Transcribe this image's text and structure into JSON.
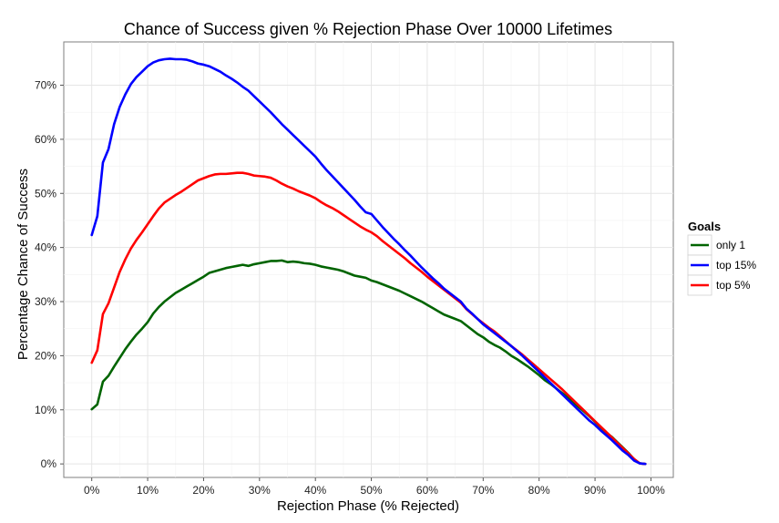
{
  "chart_data": {
    "type": "line",
    "title": "Chance of Success given % Rejection Phase Over 10000 Lifetimes",
    "xlabel": "Rejection Phase (% Rejected)",
    "ylabel": "Percentage Chance of Success",
    "xlim": [
      -5,
      104
    ],
    "ylim": [
      -2.5,
      78
    ],
    "x_ticks": [
      0,
      10,
      20,
      30,
      40,
      50,
      60,
      70,
      80,
      90,
      100
    ],
    "x_tick_labels": [
      "0%",
      "10%",
      "20%",
      "30%",
      "40%",
      "50%",
      "60%",
      "70%",
      "80%",
      "90%",
      "100%"
    ],
    "y_ticks": [
      0,
      10,
      20,
      30,
      40,
      50,
      60,
      70
    ],
    "y_tick_labels": [
      "0%",
      "10%",
      "20%",
      "30%",
      "40%",
      "50%",
      "60%",
      "70%"
    ],
    "grid": true,
    "legend_position": "right",
    "legend_title": "Goals",
    "series": [
      {
        "name": "only 1",
        "color": "#006400",
        "points": [
          [
            0,
            10.1
          ],
          [
            1,
            11
          ],
          [
            2,
            15.2
          ],
          [
            3,
            16.3
          ],
          [
            4,
            18
          ],
          [
            5,
            19.6
          ],
          [
            6,
            21.2
          ],
          [
            7,
            22.6
          ],
          [
            8,
            23.9
          ],
          [
            9,
            25
          ],
          [
            10,
            26.2
          ],
          [
            11,
            27.8
          ],
          [
            12,
            29
          ],
          [
            13,
            30
          ],
          [
            14,
            30.8
          ],
          [
            15,
            31.6
          ],
          [
            16,
            32.2
          ],
          [
            17,
            32.8
          ],
          [
            18,
            33.4
          ],
          [
            19,
            34
          ],
          [
            20,
            34.6
          ],
          [
            21,
            35.3
          ],
          [
            22,
            35.6
          ],
          [
            23,
            35.9
          ],
          [
            24,
            36.2
          ],
          [
            25,
            36.4
          ],
          [
            26,
            36.6
          ],
          [
            27,
            36.8
          ],
          [
            28,
            36.6
          ],
          [
            29,
            36.9
          ],
          [
            30,
            37.1
          ],
          [
            31,
            37.3
          ],
          [
            32,
            37.5
          ],
          [
            33,
            37.5
          ],
          [
            34,
            37.6
          ],
          [
            35,
            37.3
          ],
          [
            36,
            37.4
          ],
          [
            37,
            37.3
          ],
          [
            38,
            37.1
          ],
          [
            39,
            37
          ],
          [
            40,
            36.8
          ],
          [
            41,
            36.5
          ],
          [
            42,
            36.3
          ],
          [
            43,
            36.1
          ],
          [
            44,
            35.9
          ],
          [
            45,
            35.6
          ],
          [
            46,
            35.2
          ],
          [
            47,
            34.8
          ],
          [
            48,
            34.6
          ],
          [
            49,
            34.4
          ],
          [
            50,
            33.9
          ],
          [
            51,
            33.6
          ],
          [
            52,
            33.2
          ],
          [
            53,
            32.8
          ],
          [
            54,
            32.4
          ],
          [
            55,
            32
          ],
          [
            56,
            31.5
          ],
          [
            57,
            31
          ],
          [
            58,
            30.5
          ],
          [
            59,
            30
          ],
          [
            60,
            29.4
          ],
          [
            61,
            28.8
          ],
          [
            62,
            28.2
          ],
          [
            63,
            27.6
          ],
          [
            64,
            27.2
          ],
          [
            65,
            26.8
          ],
          [
            66,
            26.4
          ],
          [
            67,
            25.6
          ],
          [
            68,
            24.8
          ],
          [
            69,
            24
          ],
          [
            70,
            23.4
          ],
          [
            71,
            22.6
          ],
          [
            72,
            22
          ],
          [
            73,
            21.5
          ],
          [
            74,
            20.8
          ],
          [
            75,
            20
          ],
          [
            76,
            19.4
          ],
          [
            77,
            18.7
          ],
          [
            78,
            18
          ],
          [
            79,
            17.2
          ],
          [
            80,
            16.4
          ],
          [
            81,
            15.5
          ],
          [
            82,
            14.8
          ],
          [
            83,
            14
          ],
          [
            84,
            13.2
          ],
          [
            85,
            12.4
          ],
          [
            86,
            11.5
          ],
          [
            87,
            10.6
          ],
          [
            88,
            9.7
          ],
          [
            89,
            8.8
          ],
          [
            90,
            7.8
          ],
          [
            91,
            6.8
          ],
          [
            92,
            5.8
          ],
          [
            93,
            5
          ],
          [
            94,
            4
          ],
          [
            95,
            3
          ],
          [
            96,
            2
          ],
          [
            97,
            0.8
          ],
          [
            98,
            0.1
          ],
          [
            99,
            0
          ]
        ]
      },
      {
        "name": "top 15%",
        "color": "#0000ff",
        "points": [
          [
            0,
            42.3
          ],
          [
            1,
            45.8
          ],
          [
            2,
            55.7
          ],
          [
            3,
            58.2
          ],
          [
            4,
            62.8
          ],
          [
            5,
            66
          ],
          [
            6,
            68.3
          ],
          [
            7,
            70.2
          ],
          [
            8,
            71.5
          ],
          [
            9,
            72.5
          ],
          [
            10,
            73.5
          ],
          [
            11,
            74.2
          ],
          [
            12,
            74.6
          ],
          [
            13,
            74.8
          ],
          [
            14,
            74.9
          ],
          [
            15,
            74.8
          ],
          [
            16,
            74.8
          ],
          [
            17,
            74.7
          ],
          [
            18,
            74.4
          ],
          [
            19,
            74
          ],
          [
            20,
            73.8
          ],
          [
            21,
            73.5
          ],
          [
            22,
            73
          ],
          [
            23,
            72.5
          ],
          [
            24,
            71.8
          ],
          [
            25,
            71.2
          ],
          [
            26,
            70.5
          ],
          [
            27,
            69.7
          ],
          [
            28,
            69
          ],
          [
            29,
            68
          ],
          [
            30,
            67
          ],
          [
            31,
            66
          ],
          [
            32,
            65
          ],
          [
            33,
            63.9
          ],
          [
            34,
            62.8
          ],
          [
            35,
            61.8
          ],
          [
            36,
            60.8
          ],
          [
            37,
            59.8
          ],
          [
            38,
            58.8
          ],
          [
            39,
            57.8
          ],
          [
            40,
            56.8
          ],
          [
            41,
            55.5
          ],
          [
            42,
            54.3
          ],
          [
            43,
            53.2
          ],
          [
            44,
            52.1
          ],
          [
            45,
            51
          ],
          [
            46,
            49.9
          ],
          [
            47,
            48.8
          ],
          [
            48,
            47.6
          ],
          [
            49,
            46.5
          ],
          [
            50,
            46.2
          ],
          [
            51,
            45
          ],
          [
            52,
            43.8
          ],
          [
            53,
            42.7
          ],
          [
            54,
            41.6
          ],
          [
            55,
            40.6
          ],
          [
            56,
            39.5
          ],
          [
            57,
            38.5
          ],
          [
            58,
            37.4
          ],
          [
            59,
            36.3
          ],
          [
            60,
            35.3
          ],
          [
            61,
            34.3
          ],
          [
            62,
            33.4
          ],
          [
            63,
            32.4
          ],
          [
            64,
            31.6
          ],
          [
            65,
            30.8
          ],
          [
            66,
            30
          ],
          [
            67,
            28.7
          ],
          [
            68,
            27.8
          ],
          [
            69,
            26.8
          ],
          [
            70,
            25.8
          ],
          [
            71,
            25
          ],
          [
            72,
            24.2
          ],
          [
            73,
            23.4
          ],
          [
            74,
            22.6
          ],
          [
            75,
            21.8
          ],
          [
            76,
            20.9
          ],
          [
            77,
            20
          ],
          [
            78,
            19
          ],
          [
            79,
            18
          ],
          [
            80,
            17
          ],
          [
            81,
            16
          ],
          [
            82,
            15
          ],
          [
            83,
            14
          ],
          [
            84,
            13
          ],
          [
            85,
            12
          ],
          [
            86,
            11
          ],
          [
            87,
            10
          ],
          [
            88,
            9
          ],
          [
            89,
            8
          ],
          [
            90,
            7.2
          ],
          [
            91,
            6.2
          ],
          [
            92,
            5.3
          ],
          [
            93,
            4.4
          ],
          [
            94,
            3.4
          ],
          [
            95,
            2.4
          ],
          [
            96,
            1.6
          ],
          [
            97,
            0.6
          ],
          [
            98,
            0.1
          ],
          [
            99,
            0
          ]
        ]
      },
      {
        "name": "top 5%",
        "color": "#ff0000",
        "points": [
          [
            0,
            18.7
          ],
          [
            1,
            21
          ],
          [
            2,
            27.7
          ],
          [
            3,
            29.7
          ],
          [
            4,
            32.6
          ],
          [
            5,
            35.5
          ],
          [
            6,
            37.8
          ],
          [
            7,
            39.8
          ],
          [
            8,
            41.4
          ],
          [
            9,
            42.8
          ],
          [
            10,
            44.3
          ],
          [
            11,
            45.8
          ],
          [
            12,
            47.2
          ],
          [
            13,
            48.3
          ],
          [
            14,
            49
          ],
          [
            15,
            49.7
          ],
          [
            16,
            50.3
          ],
          [
            17,
            51
          ],
          [
            18,
            51.7
          ],
          [
            19,
            52.4
          ],
          [
            20,
            52.8
          ],
          [
            21,
            53.2
          ],
          [
            22,
            53.5
          ],
          [
            23,
            53.6
          ],
          [
            24,
            53.6
          ],
          [
            25,
            53.7
          ],
          [
            26,
            53.8
          ],
          [
            27,
            53.8
          ],
          [
            28,
            53.6
          ],
          [
            29,
            53.3
          ],
          [
            30,
            53.2
          ],
          [
            31,
            53.1
          ],
          [
            32,
            52.9
          ],
          [
            33,
            52.4
          ],
          [
            34,
            51.8
          ],
          [
            35,
            51.3
          ],
          [
            36,
            50.9
          ],
          [
            37,
            50.4
          ],
          [
            38,
            50
          ],
          [
            39,
            49.6
          ],
          [
            40,
            49.1
          ],
          [
            41,
            48.4
          ],
          [
            42,
            47.8
          ],
          [
            43,
            47.3
          ],
          [
            44,
            46.7
          ],
          [
            45,
            46
          ],
          [
            46,
            45.3
          ],
          [
            47,
            44.6
          ],
          [
            48,
            43.9
          ],
          [
            49,
            43.3
          ],
          [
            50,
            42.8
          ],
          [
            51,
            42.1
          ],
          [
            52,
            41.2
          ],
          [
            53,
            40.4
          ],
          [
            54,
            39.6
          ],
          [
            55,
            38.8
          ],
          [
            56,
            38
          ],
          [
            57,
            37.1
          ],
          [
            58,
            36.3
          ],
          [
            59,
            35.5
          ],
          [
            60,
            34.6
          ],
          [
            61,
            33.8
          ],
          [
            62,
            33
          ],
          [
            63,
            32.2
          ],
          [
            64,
            31.4
          ],
          [
            65,
            30.6
          ],
          [
            66,
            29.8
          ],
          [
            67,
            28.6
          ],
          [
            68,
            27.7
          ],
          [
            69,
            26.8
          ],
          [
            70,
            26
          ],
          [
            71,
            25.2
          ],
          [
            72,
            24.5
          ],
          [
            73,
            23.6
          ],
          [
            74,
            22.7
          ],
          [
            75,
            21.8
          ],
          [
            76,
            21
          ],
          [
            77,
            20.2
          ],
          [
            78,
            19.3
          ],
          [
            79,
            18.4
          ],
          [
            80,
            17.5
          ],
          [
            81,
            16.6
          ],
          [
            82,
            15.7
          ],
          [
            83,
            14.8
          ],
          [
            84,
            13.9
          ],
          [
            85,
            12.9
          ],
          [
            86,
            11.9
          ],
          [
            87,
            10.9
          ],
          [
            88,
            9.9
          ],
          [
            89,
            8.9
          ],
          [
            90,
            7.9
          ],
          [
            91,
            6.9
          ],
          [
            92,
            5.9
          ],
          [
            93,
            4.9
          ],
          [
            94,
            3.9
          ],
          [
            95,
            2.9
          ],
          [
            96,
            1.9
          ],
          [
            97,
            0.9
          ],
          [
            98,
            0.1
          ],
          [
            99,
            0
          ]
        ]
      }
    ]
  }
}
